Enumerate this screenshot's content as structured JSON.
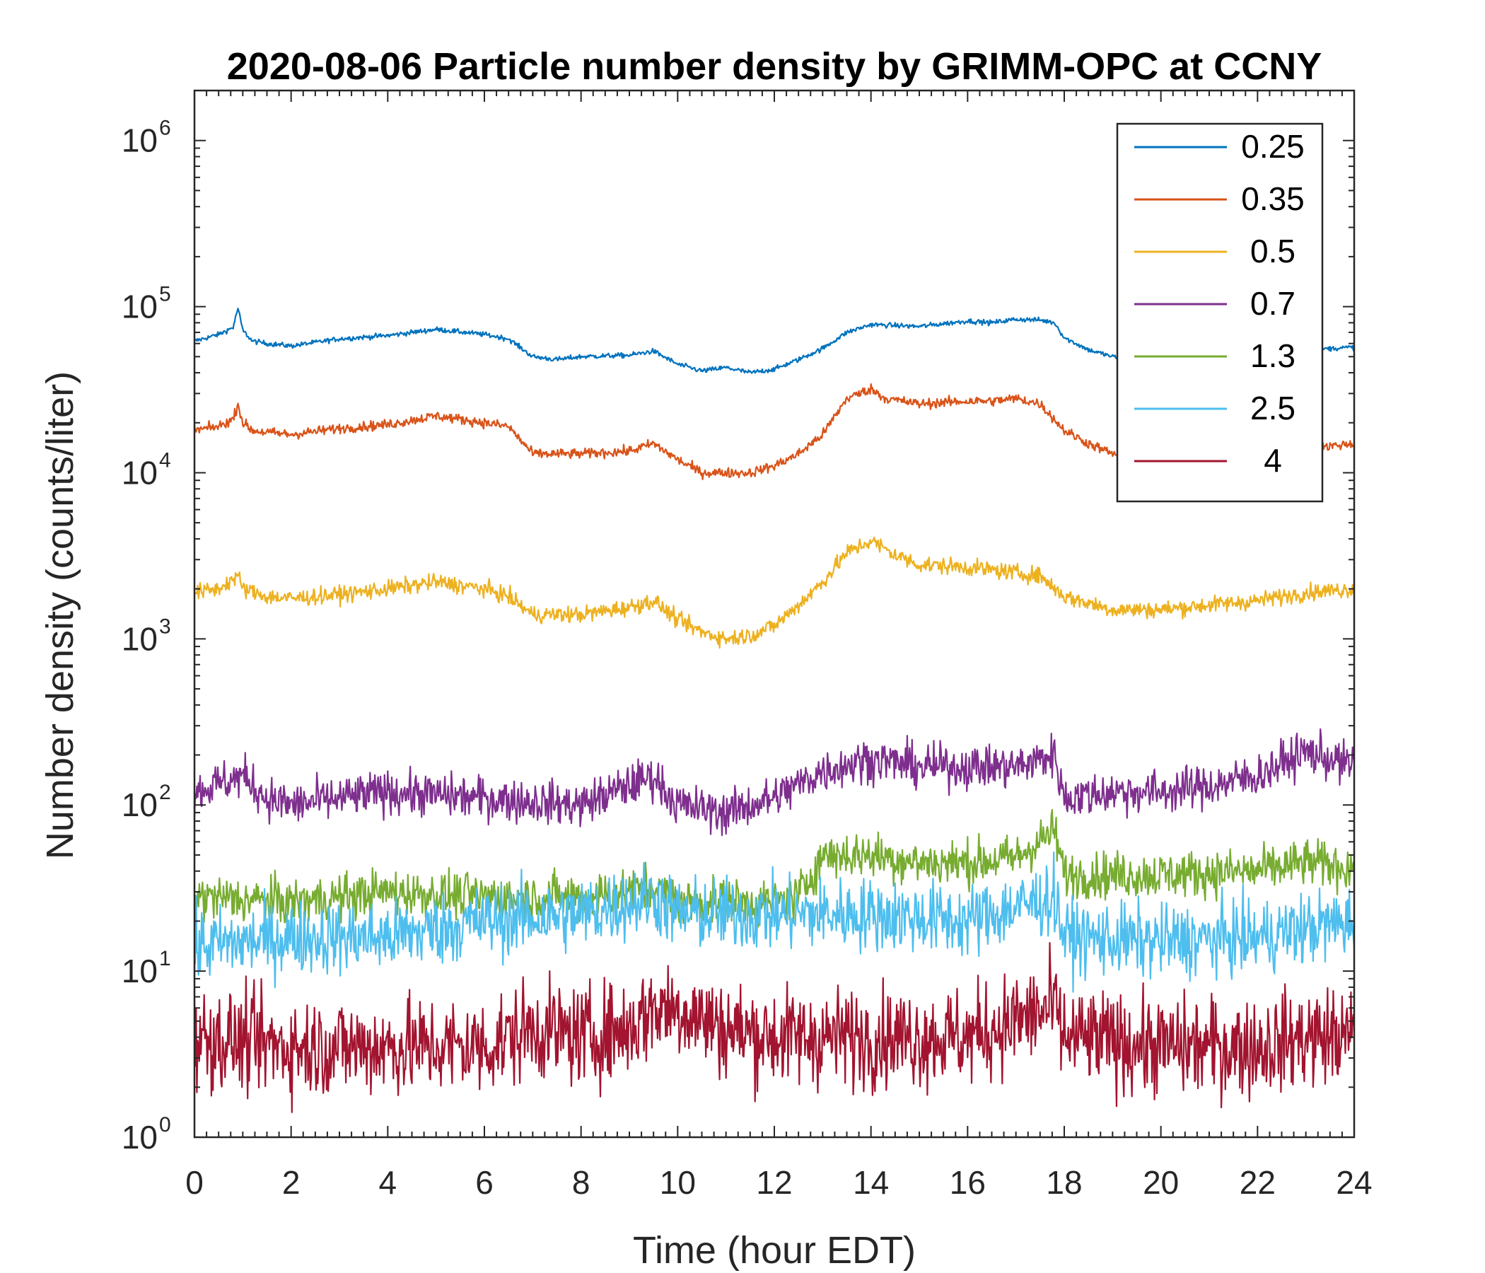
{
  "chart_data": {
    "type": "line",
    "title": "2020-08-06 Particle number density by GRIMM-OPC at CCNY",
    "xlabel": "Time (hour EDT)",
    "ylabel": "Number density (counts/liter)",
    "xlim": [
      0,
      24
    ],
    "ylim": [
      1,
      2000000
    ],
    "yscale": "log",
    "xticks": [
      0,
      2,
      4,
      6,
      8,
      10,
      12,
      14,
      16,
      18,
      20,
      22,
      24
    ],
    "xtick_labels": [
      "0",
      "2",
      "4",
      "6",
      "8",
      "10",
      "12",
      "14",
      "16",
      "18",
      "20",
      "22",
      "24"
    ],
    "yticks": [
      1,
      10,
      100,
      1000,
      10000,
      100000,
      1000000
    ],
    "ytick_base": "10",
    "ytick_exponents": [
      "0",
      "1",
      "2",
      "3",
      "4",
      "5",
      "6"
    ],
    "grid": false,
    "legend_position": "top-right",
    "series": [
      {
        "name": "0.25",
        "color": "#0072BD",
        "noise": 0.015,
        "x": [
          0,
          0.5,
          0.8,
          0.9,
          1.0,
          1.2,
          1.5,
          2,
          3,
          4,
          5,
          6,
          6.5,
          7,
          7.5,
          8,
          9,
          9.5,
          10,
          10.5,
          11,
          11.5,
          12,
          12.5,
          13,
          13.5,
          14,
          15,
          16,
          16.5,
          17,
          17.5,
          17.8,
          18,
          18.5,
          19,
          19.5,
          20,
          21,
          22,
          23,
          24
        ],
        "y": [
          62000,
          68000,
          75000,
          98000,
          72000,
          62000,
          60000,
          58000,
          64000,
          67000,
          73000,
          68000,
          64000,
          50000,
          48000,
          50000,
          51000,
          54000,
          45000,
          41000,
          43000,
          40000,
          42000,
          48000,
          56000,
          70000,
          78000,
          76000,
          82000,
          80000,
          84000,
          83000,
          80000,
          65000,
          55000,
          50000,
          47000,
          45000,
          46000,
          50000,
          55000,
          57000
        ]
      },
      {
        "name": "0.35",
        "color": "#D95319",
        "noise": 0.03,
        "x": [
          0,
          0.5,
          0.8,
          0.9,
          1.0,
          1.2,
          1.5,
          2,
          3,
          4,
          5,
          6,
          6.5,
          7,
          8,
          9,
          9.5,
          10,
          10.5,
          11,
          11.5,
          12,
          12.5,
          13,
          13.5,
          14,
          14.3,
          15,
          16,
          16.5,
          17,
          17.5,
          18,
          18.5,
          19,
          19.5,
          20,
          21,
          22,
          23,
          24
        ],
        "y": [
          18000,
          19000,
          21000,
          26000,
          20000,
          18000,
          17500,
          17000,
          18500,
          19500,
          22000,
          20000,
          19000,
          13000,
          13000,
          13500,
          15000,
          12000,
          10000,
          10000,
          10000,
          11000,
          13000,
          17000,
          28000,
          32000,
          28000,
          26000,
          27000,
          27000,
          28000,
          26000,
          18000,
          15000,
          13000,
          12500,
          12000,
          12500,
          13000,
          14000,
          15000
        ]
      },
      {
        "name": "0.5",
        "color": "#EDB120",
        "noise": 0.05,
        "x": [
          0,
          0.5,
          0.9,
          1.0,
          1.5,
          2,
          3,
          4,
          5,
          6,
          6.5,
          7,
          8,
          9,
          9.5,
          10,
          10.5,
          11,
          11.5,
          12,
          12.5,
          13,
          13.5,
          14,
          14.5,
          15,
          16,
          17,
          17.5,
          18,
          19,
          20,
          21,
          22,
          23,
          24
        ],
        "y": [
          1900,
          2000,
          2400,
          2000,
          1800,
          1750,
          1850,
          2000,
          2200,
          2000,
          1800,
          1400,
          1400,
          1550,
          1700,
          1300,
          1100,
          1000,
          1050,
          1200,
          1600,
          2200,
          3300,
          3900,
          3200,
          2800,
          2700,
          2500,
          2400,
          1800,
          1500,
          1500,
          1600,
          1700,
          1900,
          2000
        ]
      },
      {
        "name": "0.7",
        "color": "#7E2F8E",
        "noise": 0.13,
        "x": [
          0,
          1,
          1.5,
          2,
          4,
          6,
          8,
          9.5,
          10,
          11,
          12,
          13,
          14,
          15,
          16,
          17,
          17.8,
          18,
          19,
          20,
          21,
          22,
          23,
          24
        ],
        "y": [
          120,
          150,
          110,
          100,
          120,
          110,
          100,
          150,
          100,
          90,
          110,
          160,
          190,
          170,
          170,
          170,
          200,
          110,
          120,
          120,
          130,
          150,
          210,
          170
        ]
      },
      {
        "name": "1.3",
        "color": "#77AC30",
        "noise": 0.14,
        "x": [
          0,
          2,
          4,
          6,
          8,
          9.5,
          10,
          12,
          12.5,
          13,
          14,
          15,
          16,
          17,
          17.8,
          18,
          19,
          20,
          22,
          23,
          24
        ],
        "y": [
          28,
          26,
          30,
          28,
          28,
          32,
          26,
          26,
          28,
          50,
          50,
          45,
          45,
          48,
          70,
          38,
          38,
          38,
          40,
          45,
          42
        ]
      },
      {
        "name": "2.5",
        "color": "#4DBEEE",
        "noise": 0.22,
        "x": [
          0,
          2,
          4,
          6,
          8,
          9.5,
          10,
          12,
          14,
          16,
          17.8,
          18,
          20,
          22,
          23,
          24
        ],
        "y": [
          14,
          16,
          16,
          20,
          22,
          28,
          22,
          22,
          22,
          20,
          28,
          16,
          15,
          16,
          18,
          20
        ]
      },
      {
        "name": "4",
        "color": "#A2142F",
        "noise": 0.3,
        "x": [
          0,
          2,
          4,
          6,
          7,
          8,
          9,
          9.5,
          10,
          11,
          12,
          14,
          16,
          17.8,
          18,
          20,
          22,
          23,
          24
        ],
        "y": [
          4,
          3.5,
          3.5,
          3.5,
          4.5,
          4,
          4.5,
          6,
          6,
          4.5,
          4,
          4,
          4,
          6,
          4,
          3.5,
          3.5,
          4,
          4
        ]
      }
    ]
  }
}
